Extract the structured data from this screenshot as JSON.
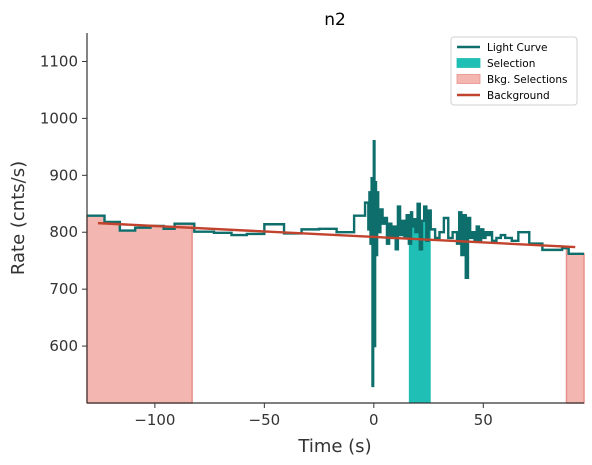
{
  "chart_data": {
    "type": "line",
    "title": "n2",
    "xlabel": "Time (s)",
    "ylabel": "Rate (cnts/s)",
    "xlim": [
      -131,
      96
    ],
    "ylim": [
      500,
      1150
    ],
    "xticks": [
      -100,
      -50,
      0,
      50
    ],
    "xtick_labels": [
      "−100",
      "−50",
      "0",
      "50"
    ],
    "yticks": [
      600,
      700,
      800,
      900,
      1000,
      1100
    ],
    "ytick_labels": [
      "600",
      "700",
      "800",
      "900",
      "1000",
      "1100"
    ],
    "grid": false,
    "legend_position": "top-right",
    "legend": [
      {
        "label": "Light Curve",
        "kind": "line",
        "color": "#0d6e6b"
      },
      {
        "label": "Selection",
        "kind": "patch",
        "color": "#1fbfb5"
      },
      {
        "label": "Bkg. Selections",
        "kind": "patch",
        "color": "#f4b6b1"
      },
      {
        "label": "Background",
        "kind": "line",
        "color": "#c1432d"
      }
    ],
    "colors": {
      "light_curve": "#0d6e6b",
      "selection": "#1fbfb5",
      "bkg_fill": "#f4b6b1",
      "bkg_edge": "#e8918a",
      "background": "#c1432d"
    },
    "series": [
      {
        "name": "Light Curve",
        "step": "post",
        "x": [
          -131,
          -123,
          -116,
          -109,
          -102,
          -96,
          -91,
          -82,
          -73,
          -65,
          -58,
          -50,
          -41,
          -33,
          -25,
          -17,
          -9,
          -4,
          -2.5,
          -2,
          -1.5,
          -1,
          -0.6,
          -0.3,
          0,
          0.3,
          0.6,
          1,
          1.5,
          2,
          2.5,
          3,
          4,
          5,
          6,
          7,
          8,
          9,
          10,
          11,
          12,
          13,
          14,
          15,
          16,
          17,
          17.5,
          18,
          19,
          20,
          21,
          22,
          23,
          24,
          25,
          26,
          28,
          30,
          32,
          34,
          36,
          38,
          39,
          40,
          41,
          42,
          43,
          44,
          45,
          46,
          47,
          48,
          49,
          50,
          51,
          52,
          53,
          54,
          56,
          58,
          60,
          63,
          66,
          71,
          77,
          86,
          89,
          96
        ],
        "y": [
          829,
          818,
          803,
          808,
          811,
          806,
          815,
          801,
          799,
          795,
          797,
          814,
          798,
          805,
          806,
          800,
          829,
          852,
          805,
          870,
          780,
          895,
          530,
          890,
          960,
          600,
          888,
          760,
          870,
          820,
          800,
          840,
          815,
          825,
          780,
          815,
          790,
          810,
          770,
          845,
          795,
          820,
          790,
          830,
          780,
          835,
          810,
          823,
          800,
          850,
          770,
          820,
          845,
          785,
          838,
          805,
          790,
          800,
          825,
          790,
          800,
          780,
          835,
          760,
          830,
          720,
          825,
          790,
          800,
          785,
          810,
          785,
          805,
          790,
          800,
          795,
          800,
          785,
          790,
          795,
          790,
          785,
          800,
          780,
          769,
          772,
          762,
          762
        ]
      },
      {
        "name": "Background",
        "x": [
          -126,
          92
        ],
        "y": [
          816,
          774
        ]
      }
    ],
    "selection_interval": [
      16,
      26
    ],
    "bkg_intervals": [
      [
        -131,
        -83
      ],
      [
        88,
        96
      ]
    ]
  }
}
